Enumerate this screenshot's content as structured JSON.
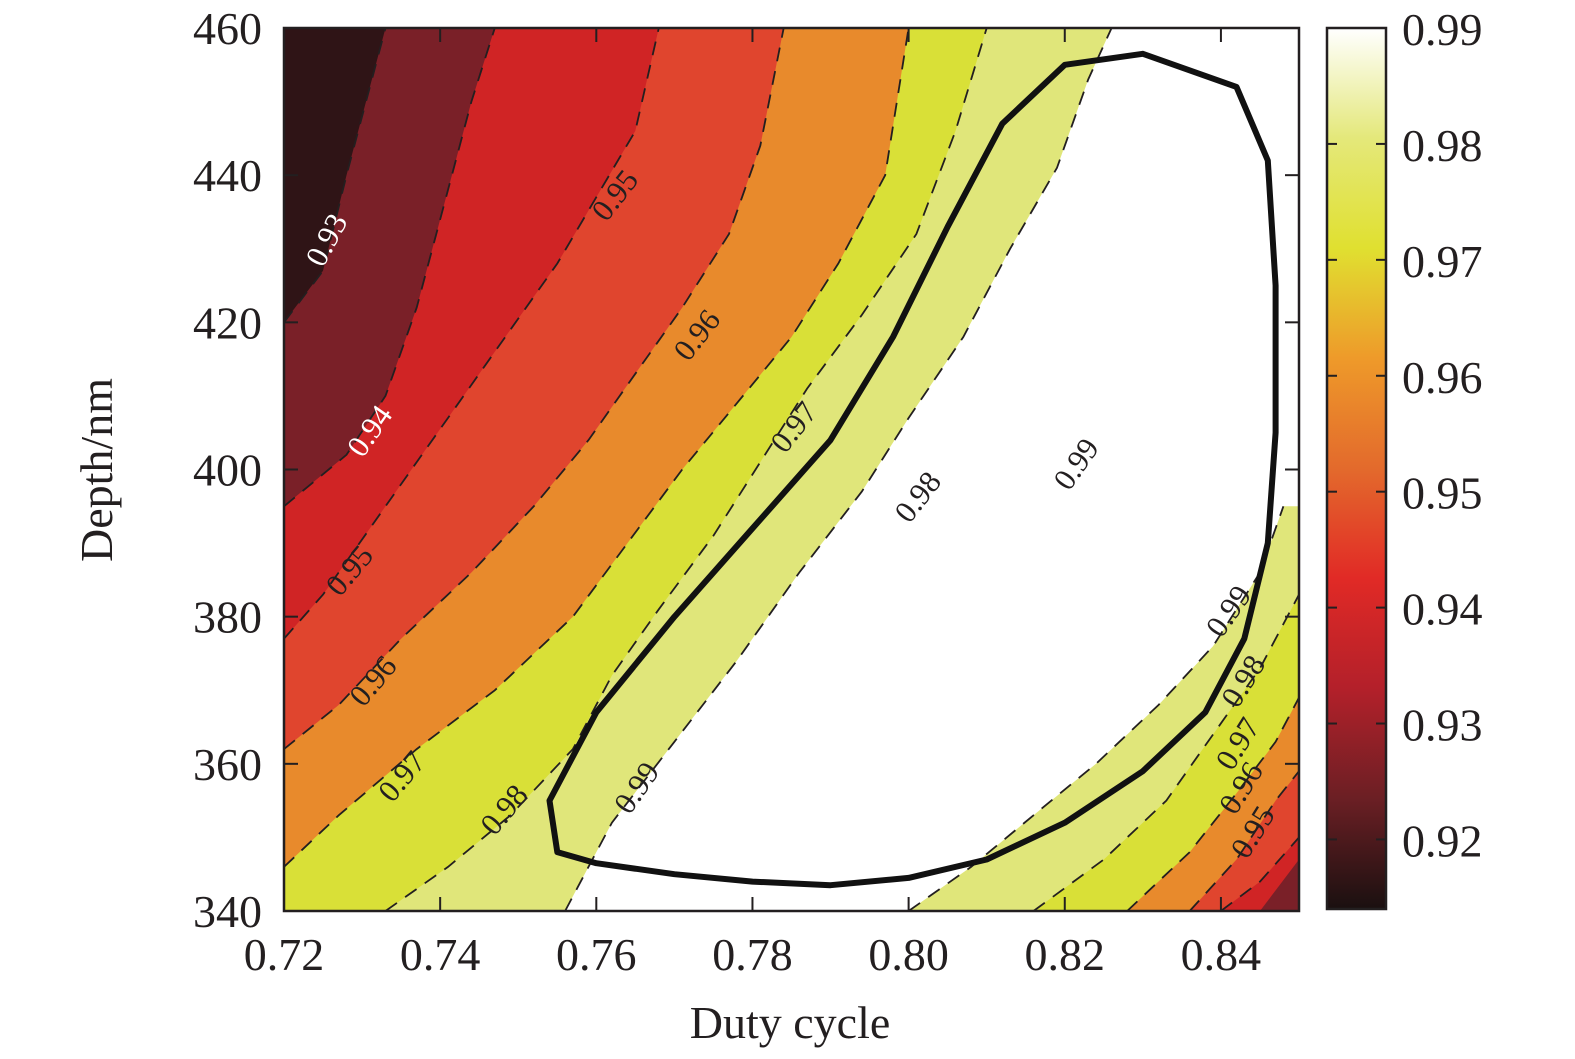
{
  "chart_data": {
    "type": "heatmap",
    "subtype": "filled-contour",
    "title": "",
    "xlabel": "Duty cycle",
    "ylabel": "Depth/nm",
    "xlim": [
      0.72,
      0.85
    ],
    "ylim": [
      340,
      460
    ],
    "xticks": [
      "0.72",
      "0.74",
      "0.76",
      "0.78",
      "0.80",
      "0.82",
      "0.84"
    ],
    "yticks": [
      "340",
      "360",
      "380",
      "400",
      "420",
      "440",
      "460"
    ],
    "colorbar": {
      "range": [
        0.914,
        0.99
      ],
      "ticks": [
        "0.92",
        "0.93",
        "0.94",
        "0.95",
        "0.96",
        "0.97",
        "0.98",
        "0.99"
      ],
      "colormap": [
        "#1a1010",
        "#6b1f24",
        "#b3202a",
        "#e12a26",
        "#e36a2c",
        "#ee9a2a",
        "#e0e030",
        "#e4e87a",
        "#ffffff"
      ]
    },
    "levels": [
      0.93,
      0.94,
      0.95,
      0.96,
      0.97,
      0.98,
      0.99
    ],
    "band_colors": {
      "below_0.93": "#2f1416",
      "0.93-0.94": "#7a2028",
      "0.94-0.95": "#d02425",
      "0.95-0.96": "#e0452e",
      "0.96-0.97": "#e88a2c",
      "0.97-0.98": "#d9e037",
      "0.98-0.99": "#e0e67a",
      "above_0.99": "#ffffff"
    },
    "contours": [
      {
        "level": 0.93,
        "label": "0.93",
        "points": [
          [
            0.72,
            420
          ],
          [
            0.725,
            427
          ],
          [
            0.728,
            440
          ],
          [
            0.733,
            460
          ]
        ]
      },
      {
        "level": 0.94,
        "label": "0.94",
        "points": [
          [
            0.72,
            395
          ],
          [
            0.728,
            402
          ],
          [
            0.733,
            410
          ],
          [
            0.737,
            422
          ],
          [
            0.741,
            438
          ],
          [
            0.744,
            450
          ],
          [
            0.747,
            460
          ]
        ]
      },
      {
        "level": 0.95,
        "label": "0.95",
        "points": [
          [
            0.72,
            377
          ],
          [
            0.725,
            383
          ],
          [
            0.731,
            392
          ],
          [
            0.737,
            401
          ],
          [
            0.743,
            410
          ],
          [
            0.749,
            419
          ],
          [
            0.755,
            428
          ],
          [
            0.76,
            437
          ],
          [
            0.765,
            446
          ],
          [
            0.768,
            460
          ]
        ]
      },
      {
        "level": 0.96,
        "label": "0.96",
        "points": [
          [
            0.72,
            362
          ],
          [
            0.727,
            368
          ],
          [
            0.735,
            377
          ],
          [
            0.744,
            386
          ],
          [
            0.752,
            395
          ],
          [
            0.759,
            404
          ],
          [
            0.765,
            413
          ],
          [
            0.771,
            422
          ],
          [
            0.777,
            432
          ],
          [
            0.781,
            444
          ],
          [
            0.784,
            460
          ]
        ]
      },
      {
        "level": 0.97,
        "label": "0.97",
        "points": [
          [
            0.72,
            346
          ],
          [
            0.727,
            353
          ],
          [
            0.737,
            362
          ],
          [
            0.747,
            370
          ],
          [
            0.757,
            380
          ],
          [
            0.764,
            390
          ],
          [
            0.771,
            400
          ],
          [
            0.778,
            409
          ],
          [
            0.785,
            418
          ],
          [
            0.791,
            428
          ],
          [
            0.797,
            440
          ],
          [
            0.8,
            460
          ]
        ]
      },
      {
        "level": 0.98,
        "label": "0.98",
        "points": [
          [
            0.733,
            340
          ],
          [
            0.741,
            346
          ],
          [
            0.749,
            353
          ],
          [
            0.757,
            362
          ],
          [
            0.762,
            372
          ],
          [
            0.768,
            381
          ],
          [
            0.775,
            391
          ],
          [
            0.781,
            401
          ],
          [
            0.787,
            411
          ],
          [
            0.794,
            421
          ],
          [
            0.801,
            432
          ],
          [
            0.806,
            446
          ],
          [
            0.81,
            460
          ]
        ]
      },
      {
        "level": 0.99,
        "label": "0.99",
        "points": [
          [
            0.756,
            340
          ],
          [
            0.762,
            352
          ],
          [
            0.77,
            363
          ],
          [
            0.778,
            374
          ],
          [
            0.786,
            386
          ],
          [
            0.794,
            397
          ],
          [
            0.8,
            407
          ],
          [
            0.807,
            418
          ],
          [
            0.813,
            430
          ],
          [
            0.819,
            441
          ],
          [
            0.823,
            453
          ],
          [
            0.826,
            460
          ]
        ]
      },
      {
        "level": 0.99,
        "label": "0.99",
        "points": [
          [
            0.8,
            340
          ],
          [
            0.808,
            346
          ],
          [
            0.816,
            353
          ],
          [
            0.824,
            360
          ],
          [
            0.832,
            368
          ],
          [
            0.839,
            376
          ],
          [
            0.845,
            386
          ],
          [
            0.848,
            395
          ]
        ]
      },
      {
        "level": 0.98,
        "label": "0.98",
        "points": [
          [
            0.816,
            340
          ],
          [
            0.825,
            347
          ],
          [
            0.833,
            355
          ],
          [
            0.839,
            364
          ],
          [
            0.845,
            373
          ],
          [
            0.85,
            383
          ]
        ]
      },
      {
        "level": 0.97,
        "label": "0.97",
        "points": [
          [
            0.828,
            340
          ],
          [
            0.836,
            348
          ],
          [
            0.842,
            356
          ],
          [
            0.847,
            363
          ],
          [
            0.85,
            369
          ]
        ]
      },
      {
        "level": 0.96,
        "label": "0.96",
        "points": [
          [
            0.836,
            340
          ],
          [
            0.842,
            347
          ],
          [
            0.847,
            355
          ],
          [
            0.85,
            359
          ]
        ]
      },
      {
        "level": 0.95,
        "label": "0.95",
        "points": [
          [
            0.84,
            340
          ],
          [
            0.845,
            344
          ],
          [
            0.85,
            350
          ]
        ]
      }
    ],
    "highlight_contour": {
      "label": "",
      "points": [
        [
          0.76,
          346.5
        ],
        [
          0.77,
          345
        ],
        [
          0.78,
          344
        ],
        [
          0.79,
          343.5
        ],
        [
          0.8,
          344.5
        ],
        [
          0.81,
          347
        ],
        [
          0.82,
          352
        ],
        [
          0.83,
          359
        ],
        [
          0.838,
          367
        ],
        [
          0.843,
          377
        ],
        [
          0.846,
          390
        ],
        [
          0.847,
          405
        ],
        [
          0.847,
          425
        ],
        [
          0.846,
          442
        ],
        [
          0.842,
          452
        ],
        [
          0.83,
          456.5
        ],
        [
          0.82,
          455
        ],
        [
          0.812,
          447
        ],
        [
          0.805,
          433
        ],
        [
          0.798,
          418
        ],
        [
          0.79,
          404
        ],
        [
          0.78,
          392
        ],
        [
          0.77,
          380
        ],
        [
          0.76,
          367
        ],
        [
          0.754,
          355
        ],
        [
          0.755,
          348
        ],
        [
          0.76,
          346.5
        ]
      ]
    },
    "contour_labels": [
      {
        "text": "0.93",
        "x": 0.7258,
        "y": 431,
        "angle": -62,
        "color": "#ffffff"
      },
      {
        "text": "0.94",
        "x": 0.7313,
        "y": 405,
        "angle": -55,
        "color": "#ffffff"
      },
      {
        "text": "0.95",
        "x": 0.7287,
        "y": 386,
        "angle": -50,
        "color": "#231f20"
      },
      {
        "text": "0.96",
        "x": 0.7317,
        "y": 371,
        "angle": -50,
        "color": "#231f20"
      },
      {
        "text": "0.97",
        "x": 0.7354,
        "y": 358,
        "angle": -50,
        "color": "#231f20"
      },
      {
        "text": "0.98",
        "x": 0.7485,
        "y": 353.5,
        "angle": -50,
        "color": "#231f20"
      },
      {
        "text": "0.99",
        "x": 0.7655,
        "y": 356.5,
        "angle": -55,
        "color": "#231f20"
      },
      {
        "text": "0.95",
        "x": 0.7627,
        "y": 437,
        "angle": -52,
        "color": "#231f20"
      },
      {
        "text": "0.96",
        "x": 0.7732,
        "y": 418,
        "angle": -52,
        "color": "#231f20"
      },
      {
        "text": "0.97",
        "x": 0.7856,
        "y": 405.5,
        "angle": -52,
        "color": "#231f20"
      },
      {
        "text": "0.98",
        "x": 0.8015,
        "y": 396,
        "angle": -52,
        "color": "#231f20"
      },
      {
        "text": "0.99",
        "x": 0.8218,
        "y": 400.5,
        "angle": -55,
        "color": "#231f20"
      },
      {
        "text": "0.99",
        "x": 0.8413,
        "y": 380.5,
        "angle": -55,
        "color": "#231f20"
      },
      {
        "text": "0.98",
        "x": 0.8432,
        "y": 371,
        "angle": -58,
        "color": "#231f20"
      },
      {
        "text": "0.97",
        "x": 0.8425,
        "y": 362.5,
        "angle": -58,
        "color": "#231f20"
      },
      {
        "text": "0.96",
        "x": 0.8429,
        "y": 356.5,
        "angle": -58,
        "color": "#231f20"
      },
      {
        "text": "0.95",
        "x": 0.8444,
        "y": 350.5,
        "angle": -58,
        "color": "#231f20"
      }
    ]
  }
}
